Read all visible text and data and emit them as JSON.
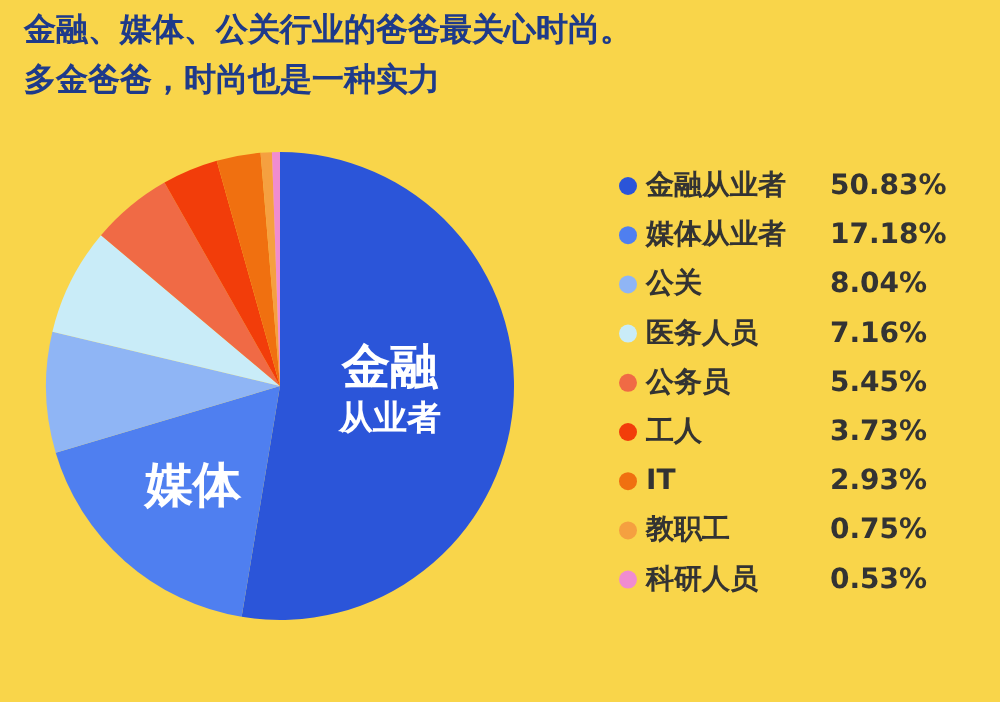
{
  "chart_data": {
    "type": "pie",
    "title": "金融、媒体、公关行业的爸爸最关心时尚。",
    "subtitle": "多金爸爸，时尚也是一种实力",
    "categories": [
      "金融从业者",
      "媒体从业者",
      "公关",
      "医务人员",
      "公务员",
      "工人",
      "IT",
      "教职工",
      "科研人员"
    ],
    "values": [
      50.83,
      17.18,
      8.04,
      7.16,
      5.45,
      3.73,
      2.93,
      0.75,
      0.53
    ],
    "value_labels": [
      "50.83%",
      "17.18%",
      "8.04%",
      "7.16%",
      "5.45%",
      "3.73%",
      "2.93%",
      "0.75%",
      "0.53%"
    ],
    "colors": [
      "#2b55d9",
      "#4f7ff0",
      "#8fb5f5",
      "#c9ecf8",
      "#f06a45",
      "#f23d0a",
      "#f07010",
      "#f5a040",
      "#f08cd0"
    ],
    "annotations": [
      {
        "text": "金融",
        "x": "金融从业者"
      },
      {
        "text": "从业者",
        "x": "金融从业者"
      },
      {
        "text": "媒体",
        "x": "媒体从业者"
      }
    ],
    "legend": "right"
  }
}
